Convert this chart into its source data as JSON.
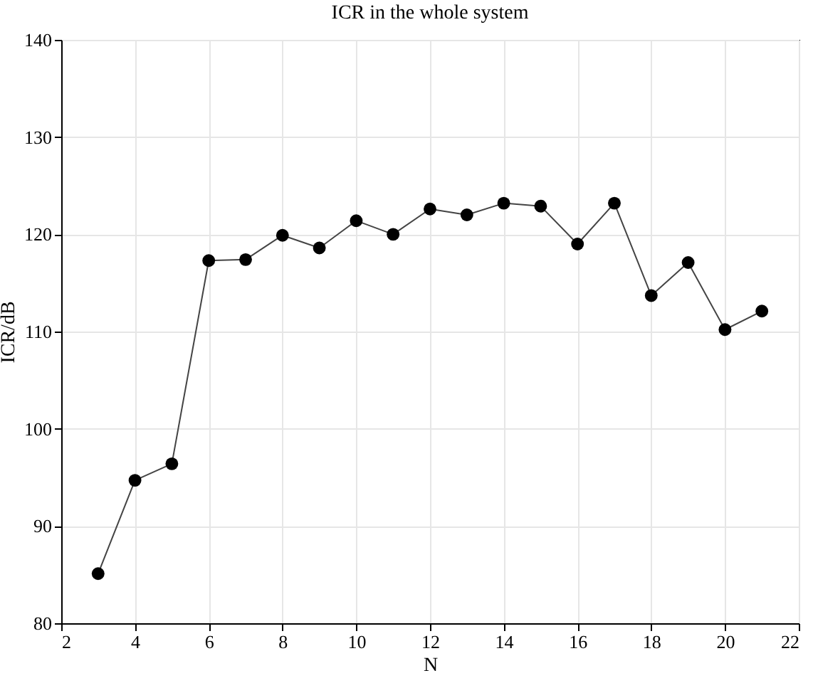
{
  "chart_data": {
    "type": "line",
    "title": "ICR in the whole system",
    "xlabel": "N",
    "ylabel": "ICR/dB",
    "x": [
      3,
      4,
      5,
      6,
      7,
      8,
      9,
      10,
      11,
      12,
      13,
      14,
      15,
      16,
      17,
      18,
      19,
      20,
      21
    ],
    "series": [
      {
        "color": "#000000",
        "values": [
          85.1,
          94.7,
          96.4,
          117.3,
          117.4,
          119.9,
          118.6,
          121.4,
          120.0,
          122.6,
          122.0,
          123.2,
          122.9,
          119.0,
          123.2,
          113.7,
          117.1,
          110.2,
          112.1
        ]
      }
    ],
    "xlim": [
      2,
      22
    ],
    "xticks": [
      2,
      4,
      6,
      8,
      10,
      12,
      14,
      16,
      18,
      20,
      22
    ],
    "ylim": [
      80,
      140
    ],
    "yticks": [
      80,
      90,
      100,
      110,
      120,
      130,
      140
    ],
    "grid": true,
    "marker": "circle",
    "line_style": "solid"
  }
}
